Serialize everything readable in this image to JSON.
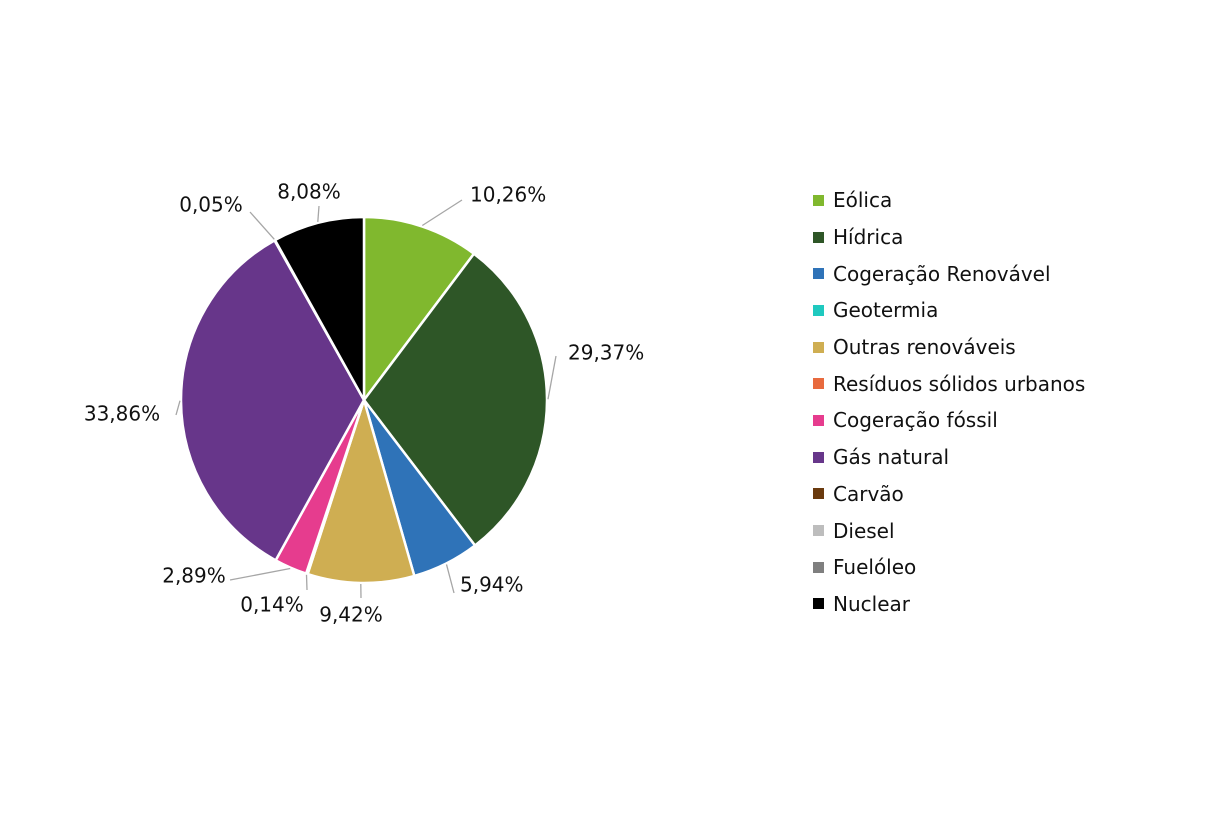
{
  "chart_data": {
    "type": "pie",
    "title": "",
    "legend_position": "right",
    "slices": [
      {
        "label": "Eólica",
        "value": 10.26,
        "value_label": "10,26%",
        "color": "#80B82E"
      },
      {
        "label": "Hídrica",
        "value": 29.37,
        "value_label": "29,37%",
        "color": "#2E5627"
      },
      {
        "label": "Cogeração Renovável",
        "value": 5.94,
        "value_label": "5,94%",
        "color": "#2F73B8"
      },
      {
        "label": "Geotermia",
        "value": 0,
        "value_label": "",
        "color": "#1FC9BF"
      },
      {
        "label": "Outras renováveis",
        "value": 9.42,
        "value_label": "9,42%",
        "color": "#CFAE52"
      },
      {
        "label": "Resíduos sólidos urbanos",
        "value": 0.14,
        "value_label": "0,14%",
        "color": "#E86A3E"
      },
      {
        "label": "Cogeração fóssil",
        "value": 2.89,
        "value_label": "2,89%",
        "color": "#E63C8E"
      },
      {
        "label": "Gás natural",
        "value": 33.86,
        "value_label": "33,86%",
        "color": "#67368A"
      },
      {
        "label": "Carvão",
        "value": 0,
        "value_label": "",
        "color": "#6A3A0E"
      },
      {
        "label": "Diesel",
        "value": 0,
        "value_label": "",
        "color": "#BDBDBD"
      },
      {
        "label": "Fuelóleo",
        "value": 0.05,
        "value_label": "0,05%",
        "color": "#7F7F7F"
      },
      {
        "label": "Nuclear",
        "value": 8.08,
        "value_label": "8,08%",
        "color": "#000000"
      }
    ]
  }
}
